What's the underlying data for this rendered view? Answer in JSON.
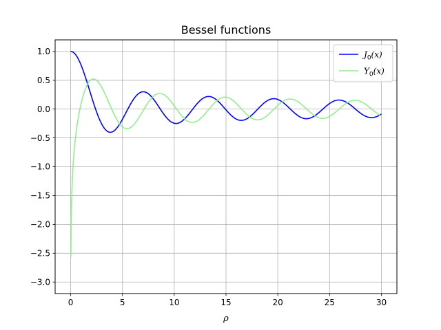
{
  "chart_data": {
    "type": "line",
    "title": "Bessel functions",
    "xlabel": "ρ",
    "ylabel": "",
    "xlim": [
      -1.5,
      31.5
    ],
    "ylim": [
      -3.2,
      1.2
    ],
    "xticks": [
      0,
      5,
      10,
      15,
      20,
      25,
      30
    ],
    "yticks": [
      1.0,
      0.5,
      0.0,
      -0.5,
      -1.0,
      -1.5,
      -2.0,
      -2.5,
      -3.0
    ],
    "xtick_labels": [
      "0",
      "5",
      "10",
      "15",
      "20",
      "25",
      "30"
    ],
    "ytick_labels": [
      "1.0",
      "0.5",
      "0.0",
      "−0.5",
      "−1.0",
      "−1.5",
      "−2.0",
      "−2.5",
      "−3.0"
    ],
    "grid": true,
    "legend_position": "top-right",
    "x_range": [
      0,
      30
    ],
    "series": [
      {
        "name": "J0(x)",
        "name_base": "J",
        "name_sub": "0",
        "name_arg": "(x)",
        "function": "J0",
        "color": "#0000ff"
      },
      {
        "name": "Y0(x)",
        "name_base": "Y",
        "name_sub": "0",
        "name_arg": "(x)",
        "function": "Y0",
        "color": "#90ee90"
      }
    ]
  }
}
